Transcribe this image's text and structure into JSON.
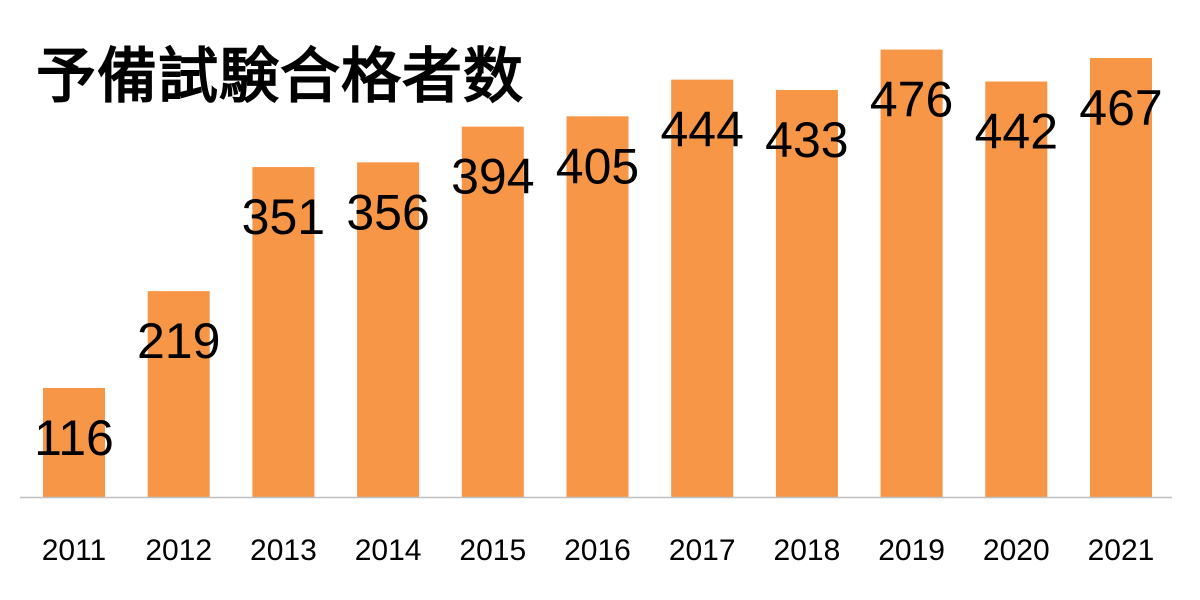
{
  "chart_data": {
    "type": "bar",
    "title": "予備試験合格者数",
    "xlabel": "",
    "ylabel": "",
    "categories": [
      "2011",
      "2012",
      "2013",
      "2014",
      "2015",
      "2016",
      "2017",
      "2018",
      "2019",
      "2020",
      "2021"
    ],
    "values": [
      116,
      219,
      351,
      356,
      394,
      405,
      444,
      433,
      476,
      442,
      467
    ],
    "ylim": [
      0,
      520
    ],
    "grid": false,
    "legend": "none",
    "data_labels": true,
    "colors": {
      "bar": "#F79646",
      "axis": "#BFBFBF",
      "text": "#000000"
    }
  }
}
